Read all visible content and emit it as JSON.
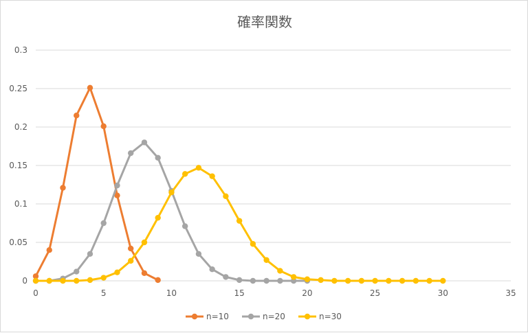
{
  "chart_data": {
    "type": "line",
    "title": "確率関数",
    "xlabel": "",
    "ylabel": "",
    "xlim": [
      0,
      35
    ],
    "ylim": [
      0,
      0.3
    ],
    "x_ticks": [
      0,
      5,
      10,
      15,
      20,
      25,
      30,
      35
    ],
    "y_ticks": [
      0,
      0.05,
      0.1,
      0.15,
      0.2,
      0.25,
      0.3
    ],
    "x_tick_labels": [
      "0",
      "5",
      "10",
      "15",
      "20",
      "25",
      "30",
      "35"
    ],
    "y_tick_labels": [
      "0",
      "0.05",
      "0.1",
      "0.15",
      "0.2",
      "0.25",
      "0.3"
    ],
    "grid": "horizontal",
    "legend_position": "bottom",
    "series": [
      {
        "name": "n=10",
        "color": "#ED7D31",
        "x": [
          0,
          1,
          2,
          3,
          4,
          5,
          6,
          7,
          8,
          9
        ],
        "values": [
          0.006,
          0.04,
          0.121,
          0.215,
          0.251,
          0.201,
          0.111,
          0.042,
          0.01,
          0.001
        ]
      },
      {
        "name": "n=20",
        "color": "#A5A5A5",
        "x": [
          0,
          1,
          2,
          3,
          4,
          5,
          6,
          7,
          8,
          9,
          10,
          11,
          12,
          13,
          14,
          15,
          16,
          17,
          18,
          19,
          20
        ],
        "values": [
          0.0,
          0.0,
          0.003,
          0.012,
          0.035,
          0.075,
          0.124,
          0.166,
          0.18,
          0.16,
          0.117,
          0.071,
          0.035,
          0.015,
          0.005,
          0.001,
          0.0,
          0.0,
          0.0,
          0.0,
          0.0
        ]
      },
      {
        "name": "n=30",
        "color": "#FFC000",
        "x": [
          0,
          1,
          2,
          3,
          4,
          5,
          6,
          7,
          8,
          9,
          10,
          11,
          12,
          13,
          14,
          15,
          16,
          17,
          18,
          19,
          20,
          21,
          22,
          23,
          24,
          25,
          26,
          27,
          28,
          29,
          30
        ],
        "values": [
          0.0,
          0.0,
          0.0,
          0.0,
          0.001,
          0.004,
          0.011,
          0.026,
          0.05,
          0.082,
          0.115,
          0.139,
          0.147,
          0.136,
          0.11,
          0.078,
          0.048,
          0.027,
          0.013,
          0.005,
          0.002,
          0.001,
          0.0,
          0.0,
          0.0,
          0.0,
          0.0,
          0.0,
          0.0,
          0.0,
          0.0
        ]
      }
    ]
  }
}
